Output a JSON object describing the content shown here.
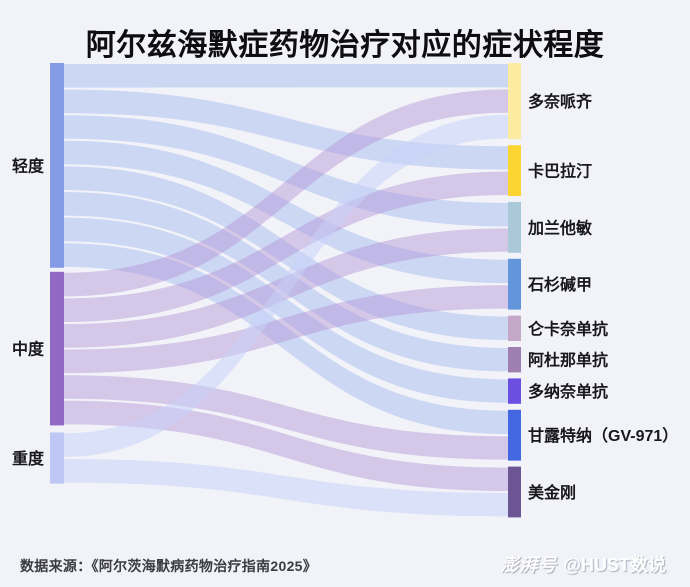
{
  "page": {
    "title": "阿尔兹海默症药物治疗对应的症状程度",
    "source_note": "数据来源：《阿尔茨海默病药物治疗指南2025》",
    "watermark": {
      "brand": "澎湃号",
      "handle": "@HUST数说"
    }
  },
  "colors": {
    "background": "#f2f3f8",
    "title_text": "#0e0e12",
    "label_text": "#17171c",
    "source_text": "#3b3b44"
  },
  "chart_data": {
    "type": "sankey",
    "title": "阿尔兹海默症药物治疗对应的症状程度",
    "legend_position": "none",
    "grid": false,
    "left_nodes": [
      {
        "name": "轻度",
        "color": "#849ce6",
        "value": 8
      },
      {
        "name": "中度",
        "color": "#9168c4",
        "value": 6
      },
      {
        "name": "重度",
        "color": "#bfc8f5",
        "value": 2
      }
    ],
    "right_nodes": [
      {
        "name": "多奈哌齐",
        "color": "#fceca2",
        "value": 3
      },
      {
        "name": "卡巴拉汀",
        "color": "#fbd532",
        "value": 2
      },
      {
        "name": "加兰他敏",
        "color": "#a9c8d8",
        "value": 2
      },
      {
        "name": "石杉碱甲",
        "color": "#6295db",
        "value": 2
      },
      {
        "name": "仑卡奈单抗",
        "color": "#c5a8c8",
        "value": 1
      },
      {
        "name": "阿杜那单抗",
        "color": "#9f7fb0",
        "value": 1
      },
      {
        "name": "多纳奈单抗",
        "color": "#6a4fe0",
        "value": 1
      },
      {
        "name": "甘露特纳（GV-971）",
        "color": "#4467e2",
        "value": 2
      },
      {
        "name": "美金刚",
        "color": "#6b5593",
        "value": 2
      }
    ],
    "links": [
      {
        "source": "轻度",
        "target": "多奈哌齐",
        "value": 1
      },
      {
        "source": "轻度",
        "target": "卡巴拉汀",
        "value": 1
      },
      {
        "source": "轻度",
        "target": "加兰他敏",
        "value": 1
      },
      {
        "source": "轻度",
        "target": "石杉碱甲",
        "value": 1
      },
      {
        "source": "轻度",
        "target": "仑卡奈单抗",
        "value": 1
      },
      {
        "source": "轻度",
        "target": "阿杜那单抗",
        "value": 1
      },
      {
        "source": "轻度",
        "target": "多纳奈单抗",
        "value": 1
      },
      {
        "source": "轻度",
        "target": "甘露特纳（GV-971）",
        "value": 1
      },
      {
        "source": "中度",
        "target": "多奈哌齐",
        "value": 1
      },
      {
        "source": "中度",
        "target": "卡巴拉汀",
        "value": 1
      },
      {
        "source": "中度",
        "target": "加兰他敏",
        "value": 1
      },
      {
        "source": "中度",
        "target": "石杉碱甲",
        "value": 1
      },
      {
        "source": "中度",
        "target": "甘露特纳（GV-971）",
        "value": 1
      },
      {
        "source": "中度",
        "target": "美金刚",
        "value": 1
      },
      {
        "source": "重度",
        "target": "多奈哌齐",
        "value": 1
      },
      {
        "source": "重度",
        "target": "美金刚",
        "value": 1
      }
    ],
    "link_colors": {
      "轻度": "rgba(166,188,240,0.5)",
      "中度": "rgba(178,146,212,0.45)",
      "重度": "rgba(200,210,248,0.55)"
    }
  }
}
